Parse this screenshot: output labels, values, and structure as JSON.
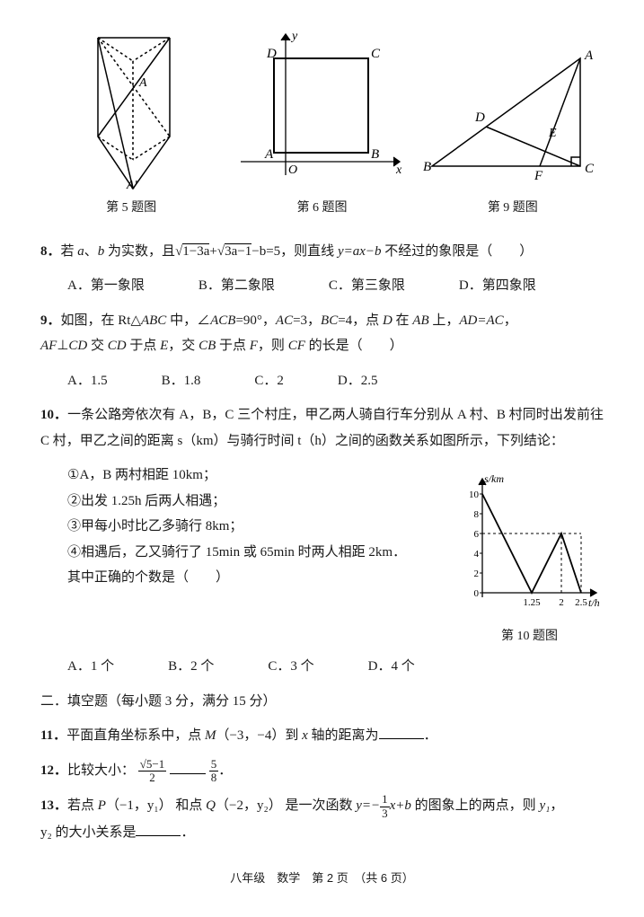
{
  "figures": {
    "fig5": {
      "caption": "第 5 题图",
      "svg_labels": {
        "A": "A",
        "Aprime": "A'"
      }
    },
    "fig6": {
      "caption": "第 6 题图",
      "svg_labels": {
        "D": "D",
        "C": "C",
        "A": "A",
        "B": "B",
        "O": "O",
        "x": "x",
        "y": "y"
      }
    },
    "fig9": {
      "caption": "第 9 题图",
      "svg_labels": {
        "A": "A",
        "B": "B",
        "C": "C",
        "D": "D",
        "E": "E",
        "F": "F"
      }
    }
  },
  "questions": {
    "q8": {
      "num": "8．",
      "text_p1": "若 ",
      "text_p2": "、",
      "text_p3": " 为实数，且",
      "text_p4": "，则直线 ",
      "text_p5": " 不经过的象限是（　　）",
      "a": "a",
      "b": "b",
      "sqrt1_inner": "1−3a",
      "sqrt2_inner": "3a−1",
      "after_sqrt": "−b=5",
      "eq": "y=ax−b",
      "options": {
        "A": "A．第一象限",
        "B": "B．第二象限",
        "C": "C．第三象限",
        "D": "D．第四象限"
      }
    },
    "q9": {
      "num": "9．",
      "text_p1": "如图，在 Rt△",
      "text_p2": " 中，∠",
      "text_p3": "=90°，",
      "text_p4": "=3，",
      "text_p5": "=4，点 ",
      "text_p6": " 在 ",
      "text_p7": " 上，",
      "text_p8": "，",
      "line2_p1": "⊥",
      "line2_p2": " 交 ",
      "line2_p3": " 于点 ",
      "line2_p4": "，交 ",
      "line2_p5": " 于点 ",
      "line2_p6": "，则 ",
      "line2_p7": " 的长是（　　）",
      "ABC": "ABC",
      "ACB": "ACB",
      "AC": "AC",
      "BC": "BC",
      "D": "D",
      "AB": "AB",
      "AD_AC": "AD=AC",
      "AF": "AF",
      "CD": "CD",
      "E": "E",
      "CB": "CB",
      "F": "F",
      "CF": "CF",
      "options": {
        "A": "A．1.5",
        "B": "B．1.8",
        "C": "C．2",
        "D": "D．2.5"
      }
    },
    "q10": {
      "num": "10．",
      "text": "一条公路旁依次有 A，B，C 三个村庄，甲乙两人骑自行车分别从 A 村、B 村同时出发前往 C 村，甲乙之间的距离 s（km）与骑行时间 t（h）之间的函数关系如图所示，下列结论：",
      "item1": "①A，B 两村相距 10km；",
      "item2": "②出发 1.25h 后两人相遇；",
      "item3": "③甲每小时比乙多骑行 8km；",
      "item4": "④相遇后，乙又骑行了 15min 或 65min 时两人相距 2km．",
      "tail": "其中正确的个数是（　　）",
      "options": {
        "A": "A．1 个",
        "B": "B．2 个",
        "C": "C．3 个",
        "D": "D．4 个"
      },
      "figure": {
        "caption": "第 10 题图",
        "ylabel": "s/km",
        "xlabel": "t/h",
        "yticks": [
          "10",
          "8",
          "6",
          "4",
          "2",
          "0"
        ],
        "xticks": [
          "1.25",
          "2",
          "2.5"
        ],
        "points": [
          [
            0,
            10
          ],
          [
            1.25,
            0
          ],
          [
            2,
            6
          ],
          [
            2.5,
            0
          ]
        ],
        "dash_y": 6,
        "dash_x_range": [
          2,
          2.5
        ]
      }
    },
    "section2": "二．填空题（每小题 3 分，满分 15 分）",
    "q11": {
      "num": "11．",
      "text_p1": "平面直角坐标系中，点 ",
      "text_p2": "（−3，−4）到 ",
      "text_p3": " 轴的距离为",
      "text_p4": "．",
      "M": "M",
      "x": "x"
    },
    "q12": {
      "num": "12．",
      "text_p1": "比较大小：",
      "frac1_num": "√5−1",
      "frac1_den": "2",
      "frac2_num": "5",
      "frac2_den": "8",
      "text_p2": "．"
    },
    "q13": {
      "num": "13．",
      "text_p1": "若点 ",
      "P": "P",
      "P_coord": "（−1，y₁）",
      "text_p2": " 和点 ",
      "Q": "Q",
      "Q_coord": "（−2，y₂）",
      "text_p3": " 是一次函数 ",
      "eq_p1": "y=−",
      "eq_frac_num": "1",
      "eq_frac_den": "3",
      "eq_p2": "x+b",
      "text_p4": " 的图象上的两点，则 ",
      "y1": "y₁",
      "text_p5": "，",
      "line2_p1": "y₂ 的大小关系是",
      "line2_p2": "．"
    }
  },
  "footer": "八年级　数学　第 2 页　（共 6 页）"
}
